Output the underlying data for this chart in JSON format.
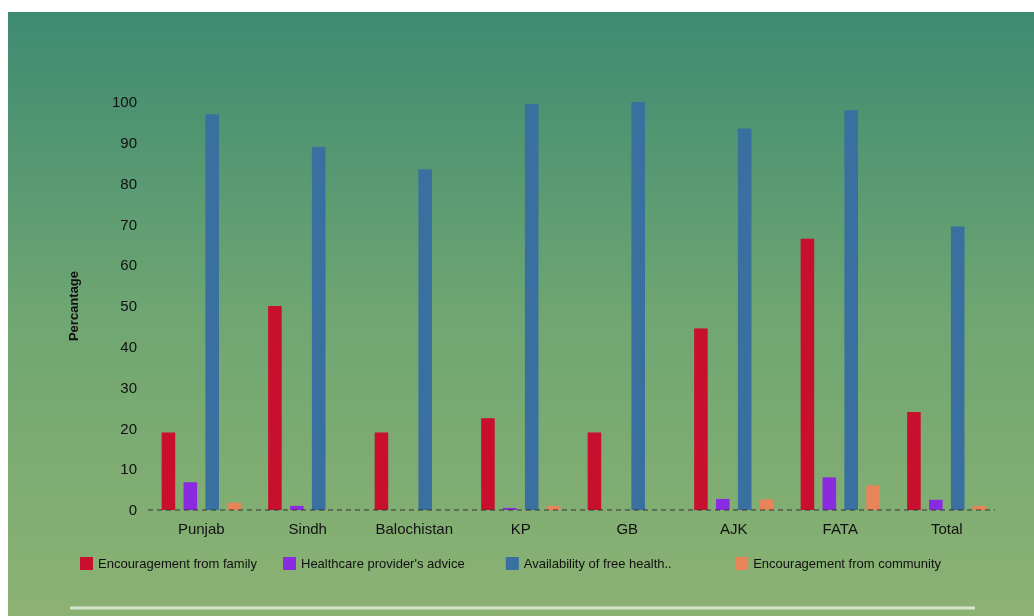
{
  "chart_data": {
    "type": "bar",
    "ylabel": "Percantage",
    "categories": [
      "Punjab",
      "Sindh",
      "Balochistan",
      "KP",
      "GB",
      "AJK",
      "FATA",
      "Total"
    ],
    "series": [
      {
        "name": "Encouragement from family",
        "color": "#c8102e",
        "values": [
          19,
          50,
          19,
          22.5,
          19,
          44.5,
          66.5,
          24
        ]
      },
      {
        "name": "Healthcare provider's advice",
        "color": "#8a2be2",
        "values": [
          6.8,
          1,
          0,
          0.5,
          0,
          2.7,
          8,
          2.5
        ]
      },
      {
        "name": "Availability of free health..",
        "color": "#3a70a0",
        "values": [
          97,
          89,
          83.5,
          99.5,
          100,
          93.5,
          98,
          69.5
        ]
      },
      {
        "name": "Encouragement from community",
        "color": "#e8845a",
        "values": [
          1.8,
          0,
          0,
          1,
          0,
          2.6,
          6,
          1
        ]
      }
    ],
    "ylim": [
      0,
      100
    ],
    "yticks": [
      0,
      10,
      20,
      30,
      40,
      50,
      60,
      70,
      80,
      90,
      100
    ],
    "grid": false,
    "legend": "bottom"
  }
}
